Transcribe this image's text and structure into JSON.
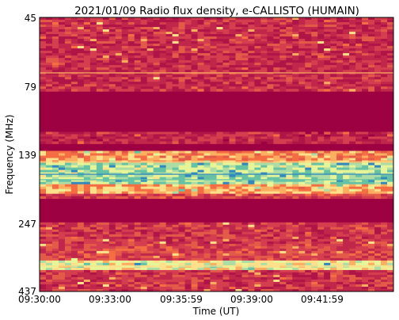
{
  "chart_data": {
    "type": "heatmap",
    "title": "2021/01/09  Radio flux density, e-CALLISTO (HUMAIN)",
    "xlabel": "Time (UT)",
    "ylabel": "Frequency (MHz)",
    "x_tick_labels": [
      "09:30:00",
      "09:33:00",
      "09:35:59",
      "09:39:00",
      "09:41:59"
    ],
    "y_tick_labels": [
      "45",
      "79",
      "139",
      "247",
      "437"
    ],
    "y_axis_direction": "frequency increases downward",
    "colormap": "Spectral_r",
    "colors": {
      "background": "#9e0142",
      "low": "#c0274a",
      "mid_low": "#f46d43",
      "mid": "#fee08b",
      "mid_high": "#e6f598",
      "high": "#66c2a5",
      "peak": "#3288bd"
    },
    "intensity_bands": [
      {
        "from_frac": 0.0,
        "to_frac": 0.06,
        "level": "low",
        "note": "band with bright streaks"
      },
      {
        "from_frac": 0.06,
        "to_frac": 0.27,
        "level": "low",
        "note": "noisy band"
      },
      {
        "from_frac": 0.27,
        "to_frac": 0.42,
        "level": "background",
        "note": "quiet dark band"
      },
      {
        "from_frac": 0.42,
        "to_frac": 0.49,
        "level": "background",
        "note": "dark band"
      },
      {
        "from_frac": 0.53,
        "to_frac": 0.61,
        "level": "high",
        "note": "strong interference band"
      },
      {
        "from_frac": 0.66,
        "to_frac": 0.75,
        "level": "background",
        "note": "quiet dark band"
      },
      {
        "from_frac": 0.89,
        "to_frac": 0.92,
        "level": "mid",
        "note": "strong interference band"
      },
      {
        "from_frac": 0.92,
        "to_frac": 1.0,
        "level": "low",
        "note": "noisy band"
      }
    ]
  }
}
